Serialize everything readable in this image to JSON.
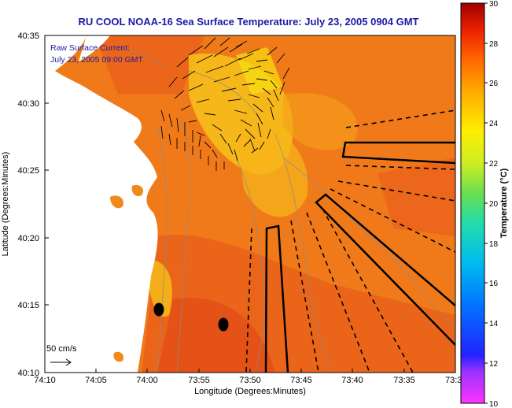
{
  "map": {
    "title": "RU COOL  NOAA-16  Sea Surface Temperature:  July 23, 2005 0904 GMT",
    "current_label_line1": "Raw Surface Current:",
    "current_label_line2": "July 23, 2005 09:00 GMT",
    "scale_label": "50 cm/s",
    "x_label": "Longitude (Degrees:Minutes)",
    "y_label": "Latitude (Degrees:Minutes)",
    "x_ticks": [
      "74:10",
      "74:05",
      "74:00",
      "73:55",
      "73:50",
      "73:45",
      "73:40",
      "73:35",
      "73:3"
    ],
    "y_ticks": [
      "40:35",
      "40:30",
      "40:25",
      "40:20",
      "40:15",
      "40:10"
    ]
  },
  "colorbar": {
    "label": "Temperature (°C)",
    "ticks": [
      "30",
      "28",
      "26",
      "24",
      "22",
      "20",
      "18",
      "16",
      "14",
      "12",
      "10"
    ],
    "min": 10,
    "max": 30
  },
  "colors": {
    "title": "#1a1aa6",
    "sst_warm": "#f07a1a",
    "sst_hot": "#e8501a",
    "sst_cool": "#f5c61a",
    "land": "#ffffff"
  }
}
